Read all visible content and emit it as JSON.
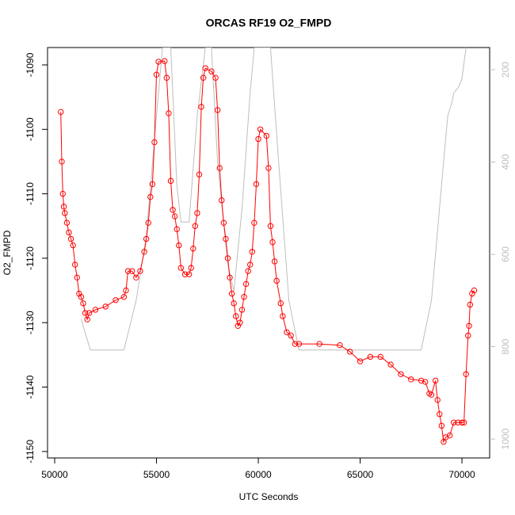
{
  "chart_data": {
    "type": "scatter",
    "title": "ORCAS RF19 O2_FMPD",
    "x_label": "UTC Seconds",
    "y_label": "O2_FMPD",
    "xlim": [
      49650,
      71360
    ],
    "ylim": [
      -1151.0,
      -1087.3
    ],
    "y2lim": [
      1041,
      152
    ],
    "xticks": [
      50000,
      55000,
      60000,
      65000,
      70000
    ],
    "yticks": [
      -1150,
      -1140,
      -1130,
      -1120,
      -1110,
      -1100,
      -1090
    ],
    "y2ticks": [
      200,
      400,
      600,
      800,
      1000
    ],
    "series": [
      {
        "color": "#ff0000",
        "x": [
          50300,
          50350,
          50400,
          50450,
          50500,
          50600,
          50700,
          50800,
          50900,
          51000,
          51100,
          51200,
          51300,
          51400,
          51500,
          51600,
          51700,
          52000,
          52500,
          53000,
          53400,
          53500,
          53600,
          53800,
          54000,
          54200,
          54400,
          54500,
          54600,
          54700,
          54800,
          54900,
          55000,
          55100,
          55400,
          55500,
          55600,
          55700,
          55800,
          55900,
          56000,
          56100,
          56200,
          56400,
          56600,
          56700,
          56800,
          56900,
          57000,
          57100,
          57200,
          57300,
          57400,
          57700,
          57900,
          58000,
          58100,
          58200,
          58300,
          58400,
          58500,
          58600,
          58700,
          58800,
          58900,
          59000,
          59100,
          59200,
          59300,
          59400,
          59500,
          59600,
          59700,
          59800,
          59900,
          60000,
          60100,
          60400,
          60500,
          60600,
          60700,
          60800,
          60900,
          61100,
          61200,
          61400,
          61600,
          61800,
          62000,
          63000,
          64000,
          64500,
          65000,
          65500,
          66000,
          66500,
          67000,
          67500,
          68000,
          68200,
          68400,
          68500,
          68700,
          68800,
          68900,
          69000,
          69100,
          69200,
          69400,
          69600,
          69800,
          70000,
          70100,
          70200,
          70300,
          70350,
          70400,
          70500,
          70600
        ],
        "values": [
          -1097.3,
          -1105,
          -1110,
          -1112,
          -1113,
          -1114.5,
          -1116,
          -1117,
          -1118,
          -1121,
          -1123,
          -1125.5,
          -1126,
          -1127,
          -1128.5,
          -1129.5,
          -1128.5,
          -1128,
          -1127.5,
          -1126.5,
          -1126,
          -1125,
          -1122,
          -1122,
          -1123,
          -1122,
          -1119,
          -1117,
          -1114.5,
          -1110.5,
          -1108.5,
          -1102,
          -1091.5,
          -1089.5,
          -1089.4,
          -1092,
          -1097.5,
          -1108,
          -1112.5,
          -1113.5,
          -1115.5,
          -1118,
          -1121.5,
          -1122.5,
          -1122.5,
          -1121.5,
          -1118.5,
          -1115,
          -1113,
          -1107,
          -1096.5,
          -1092,
          -1090.5,
          -1091,
          -1092,
          -1097,
          -1106,
          -1111,
          -1114.5,
          -1117,
          -1120,
          -1123,
          -1125.5,
          -1127,
          -1129,
          -1130.5,
          -1130,
          -1128,
          -1126,
          -1124,
          -1122,
          -1121,
          -1119,
          -1114.5,
          -1108.5,
          -1101.5,
          -1100,
          -1101,
          -1106,
          -1115,
          -1117.5,
          -1120.5,
          -1123.5,
          -1127,
          -1129,
          -1131.5,
          -1132,
          -1133.3,
          -1133.3,
          -1133.3,
          -1133.5,
          -1134.5,
          -1136,
          -1135.3,
          -1135.3,
          -1136.5,
          -1138,
          -1138.8,
          -1139,
          -1139.2,
          -1141,
          -1141.2,
          -1139,
          -1142,
          -1144.2,
          -1146,
          -1148.5,
          -1147.8,
          -1147.5,
          -1145.5,
          -1145.5,
          -1145.5,
          -1145.5,
          -1138,
          -1132,
          -1130.5,
          -1127.2,
          -1125.5,
          -1125
        ]
      },
      {
        "color": "#bebebe",
        "axis": "y2",
        "x": [
          51300,
          51750,
          53400,
          54000,
          54500,
          55000,
          55300,
          55700,
          56000,
          56200,
          56600,
          57000,
          57400,
          57700,
          58000,
          58500,
          58800,
          59200,
          59600,
          59800,
          60600,
          61000,
          61500,
          62000,
          68000,
          68500,
          69000,
          69300,
          69500,
          69600,
          69800,
          69900,
          70000,
          70200
        ],
        "values": [
          740,
          807,
          807,
          700,
          560,
          300,
          152,
          152,
          450,
          530,
          530,
          300,
          152,
          152,
          400,
          620,
          680,
          500,
          250,
          152,
          152,
          400,
          700,
          807,
          807,
          700,
          450,
          300,
          272,
          250,
          240,
          230,
          220,
          152
        ]
      }
    ]
  }
}
